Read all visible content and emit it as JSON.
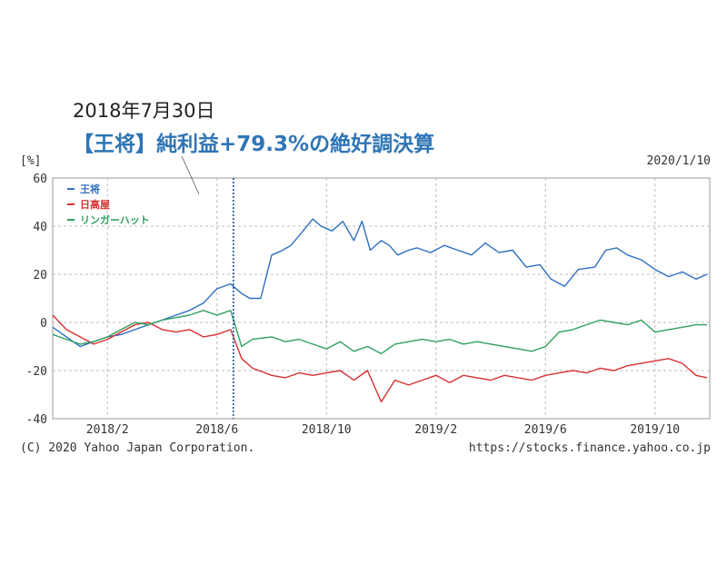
{
  "annotation": {
    "date": "2018年7月30日",
    "headline": "【王将】純利益+79.3%の絶好調決算"
  },
  "chart_data": {
    "type": "line",
    "y_unit_label": "[%]",
    "as_of_date": "2020/1/10",
    "ylim": [
      -40,
      60
    ],
    "y_ticks": [
      60,
      40,
      20,
      0,
      -20,
      -40
    ],
    "x_tick_labels": [
      "2018/2",
      "2018/6",
      "2018/10",
      "2019/2",
      "2019/6",
      "2019/10"
    ],
    "grid": true,
    "legend_placement": "top-left",
    "event_marker_x": 6.6,
    "series": [
      {
        "name": "王将",
        "color": "#2e6fc0",
        "x": [
          0,
          0.5,
          1,
          1.5,
          2,
          2.5,
          3,
          3.5,
          4,
          4.5,
          5,
          5.5,
          6,
          6.5,
          6.9,
          7.2,
          7.6,
          8,
          8.4,
          8.7,
          9,
          9.5,
          9.8,
          10.2,
          10.6,
          11,
          11.3,
          11.6,
          12,
          12.3,
          12.6,
          13,
          13.3,
          13.8,
          14.3,
          14.8,
          15.3,
          15.8,
          16.3,
          16.8,
          17.3,
          17.8,
          18.2,
          18.7,
          19.2,
          19.8,
          20.2,
          20.6,
          21,
          21.5,
          22,
          22.5,
          23,
          23.5,
          23.9
        ],
        "values": [
          -2,
          -6,
          -10,
          -8,
          -6,
          -5,
          -3,
          -1,
          1,
          3,
          5,
          8,
          14,
          16,
          12,
          10,
          10,
          28,
          30,
          32,
          36,
          43,
          40,
          38,
          42,
          34,
          42,
          30,
          34,
          32,
          28,
          30,
          31,
          29,
          32,
          30,
          28,
          33,
          29,
          30,
          23,
          24,
          18,
          15,
          22,
          23,
          30,
          31,
          28,
          26,
          22,
          19,
          21,
          18,
          20
        ]
      },
      {
        "name": "日高屋",
        "color": "#d93030",
        "x": [
          0,
          0.5,
          1,
          1.5,
          2,
          2.5,
          3,
          3.5,
          4,
          4.5,
          5,
          5.5,
          6,
          6.5,
          6.9,
          7.3,
          8,
          8.5,
          9,
          9.5,
          10,
          10.5,
          11,
          11.5,
          12,
          12.5,
          13,
          13.5,
          14,
          14.5,
          15,
          15.5,
          16,
          16.5,
          17,
          17.5,
          18,
          18.5,
          19,
          19.5,
          20,
          20.5,
          21,
          21.5,
          22,
          22.5,
          23,
          23.5,
          23.9
        ],
        "values": [
          3,
          -3,
          -6,
          -9,
          -7,
          -4,
          -1,
          0,
          -3,
          -4,
          -3,
          -6,
          -5,
          -3,
          -15,
          -19,
          -22,
          -23,
          -21,
          -22,
          -21,
          -20,
          -24,
          -20,
          -33,
          -24,
          -26,
          -24,
          -22,
          -25,
          -22,
          -23,
          -24,
          -22,
          -23,
          -24,
          -22,
          -21,
          -20,
          -21,
          -19,
          -20,
          -18,
          -17,
          -16,
          -15,
          -17,
          -22,
          -23
        ]
      },
      {
        "name": "リンガーハット",
        "color": "#30a060",
        "x": [
          0,
          0.5,
          1,
          1.5,
          2,
          2.5,
          3,
          3.5,
          4,
          4.5,
          5,
          5.5,
          6,
          6.5,
          6.9,
          7.3,
          8,
          8.5,
          9,
          9.5,
          10,
          10.5,
          11,
          11.5,
          12,
          12.5,
          13,
          13.5,
          14,
          14.5,
          15,
          15.5,
          16,
          16.5,
          17,
          17.5,
          18,
          18.5,
          19,
          19.5,
          20,
          20.5,
          21,
          21.5,
          22,
          22.5,
          23,
          23.5,
          23.9
        ],
        "values": [
          -5,
          -7,
          -9,
          -8,
          -6,
          -3,
          0,
          -1,
          1,
          2,
          3,
          5,
          3,
          5,
          -10,
          -7,
          -6,
          -8,
          -7,
          -9,
          -11,
          -8,
          -12,
          -10,
          -13,
          -9,
          -8,
          -7,
          -8,
          -7,
          -9,
          -8,
          -9,
          -10,
          -11,
          -12,
          -10,
          -4,
          -3,
          -1,
          1,
          0,
          -1,
          1,
          -4,
          -3,
          -2,
          -1,
          -1
        ]
      }
    ],
    "footer_left": "(C) 2020 Yahoo Japan Corporation.",
    "footer_right": "https://stocks.finance.yahoo.co.jp"
  }
}
